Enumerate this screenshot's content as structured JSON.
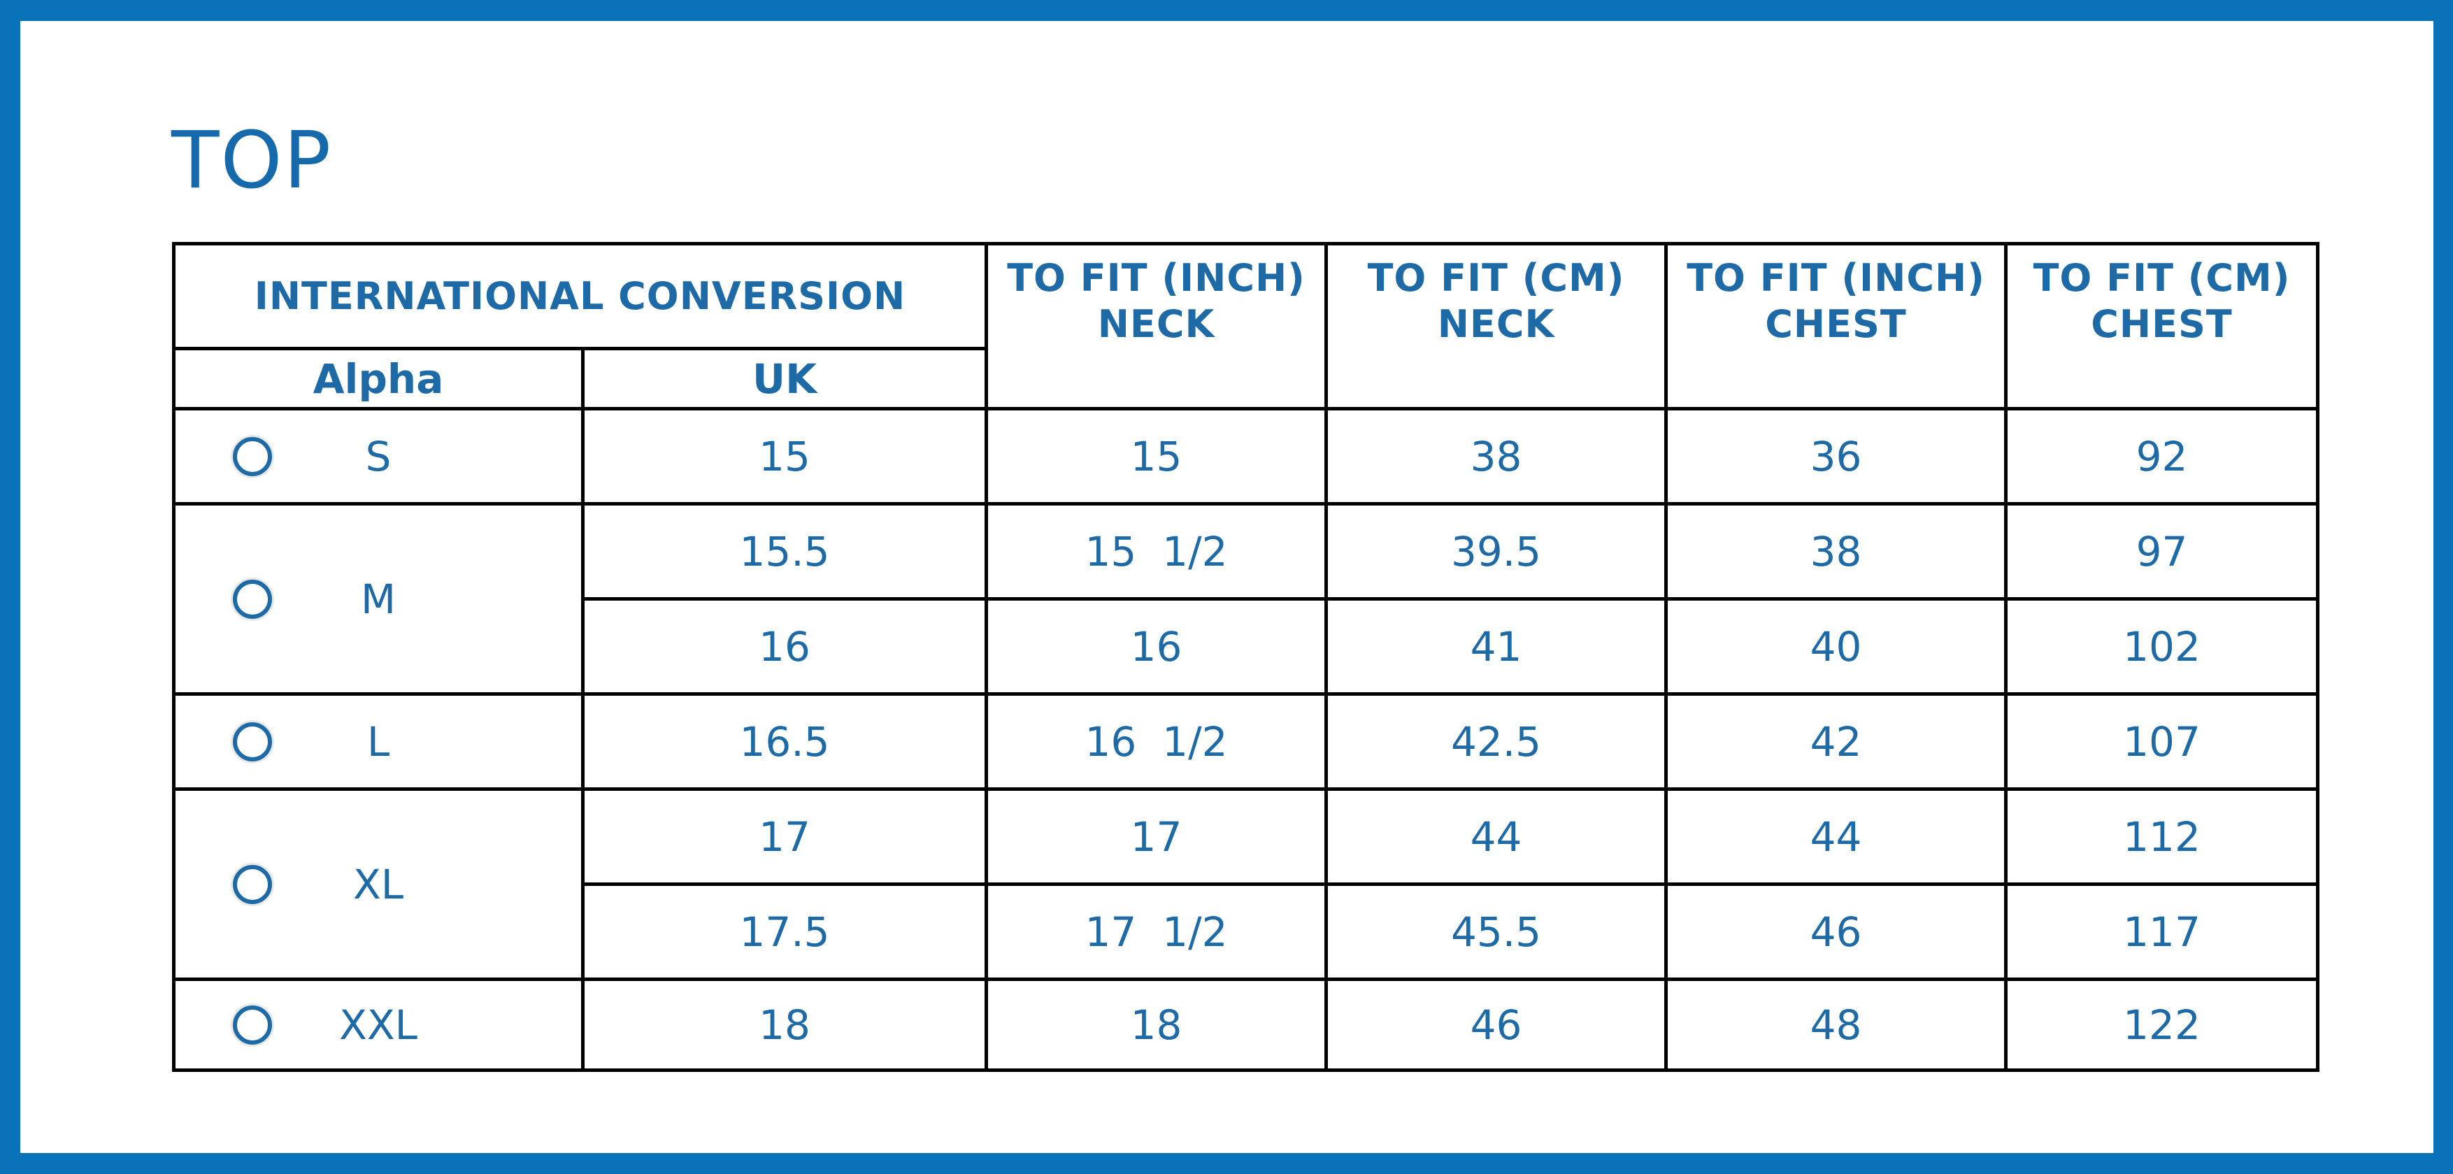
{
  "title": "TOP",
  "colors": {
    "frame": "#0a72b8",
    "title": "#1669ab",
    "text": "#1d6aa6",
    "grid": "#000000"
  },
  "header": {
    "group": "INTERNATIONAL CONVERSION",
    "alpha": "Alpha",
    "uk": "UK",
    "neck_inch": {
      "line1": "TO FIT (INCH)",
      "line2": "NECK"
    },
    "neck_cm": {
      "line1": "TO FIT (CM)",
      "line2": "NECK"
    },
    "chest_inch": {
      "line1": "TO FIT (INCH)",
      "line2": "CHEST"
    },
    "chest_cm": {
      "line1": "TO FIT (CM)",
      "line2": "CHEST"
    }
  },
  "rows": [
    {
      "uk": "15",
      "neck_inch": "15",
      "neck_cm": "38",
      "chest_inch": "36",
      "chest_cm": "92"
    },
    {
      "uk": "15.5",
      "neck_inch": "15  1/2",
      "neck_cm": "39.5",
      "chest_inch": "38",
      "chest_cm": "97"
    },
    {
      "uk": "16",
      "neck_inch": "16",
      "neck_cm": "41",
      "chest_inch": "40",
      "chest_cm": "102"
    },
    {
      "uk": "16.5",
      "neck_inch": "16  1/2",
      "neck_cm": "42.5",
      "chest_inch": "42",
      "chest_cm": "107"
    },
    {
      "uk": "17",
      "neck_inch": "17",
      "neck_cm": "44",
      "chest_inch": "44",
      "chest_cm": "112"
    },
    {
      "uk": "17.5",
      "neck_inch": "17  1/2",
      "neck_cm": "45.5",
      "chest_inch": "46",
      "chest_cm": "117"
    },
    {
      "uk": "18",
      "neck_inch": "18",
      "neck_cm": "46",
      "chest_inch": "48",
      "chest_cm": "122"
    }
  ],
  "sizes": [
    {
      "alpha": "S",
      "selected": false,
      "row_count": 1
    },
    {
      "alpha": "M",
      "selected": false,
      "row_count": 2
    },
    {
      "alpha": "L",
      "selected": false,
      "row_count": 1
    },
    {
      "alpha": "XL",
      "selected": false,
      "row_count": 2
    },
    {
      "alpha": "XXL",
      "selected": false,
      "row_count": 1
    }
  ]
}
